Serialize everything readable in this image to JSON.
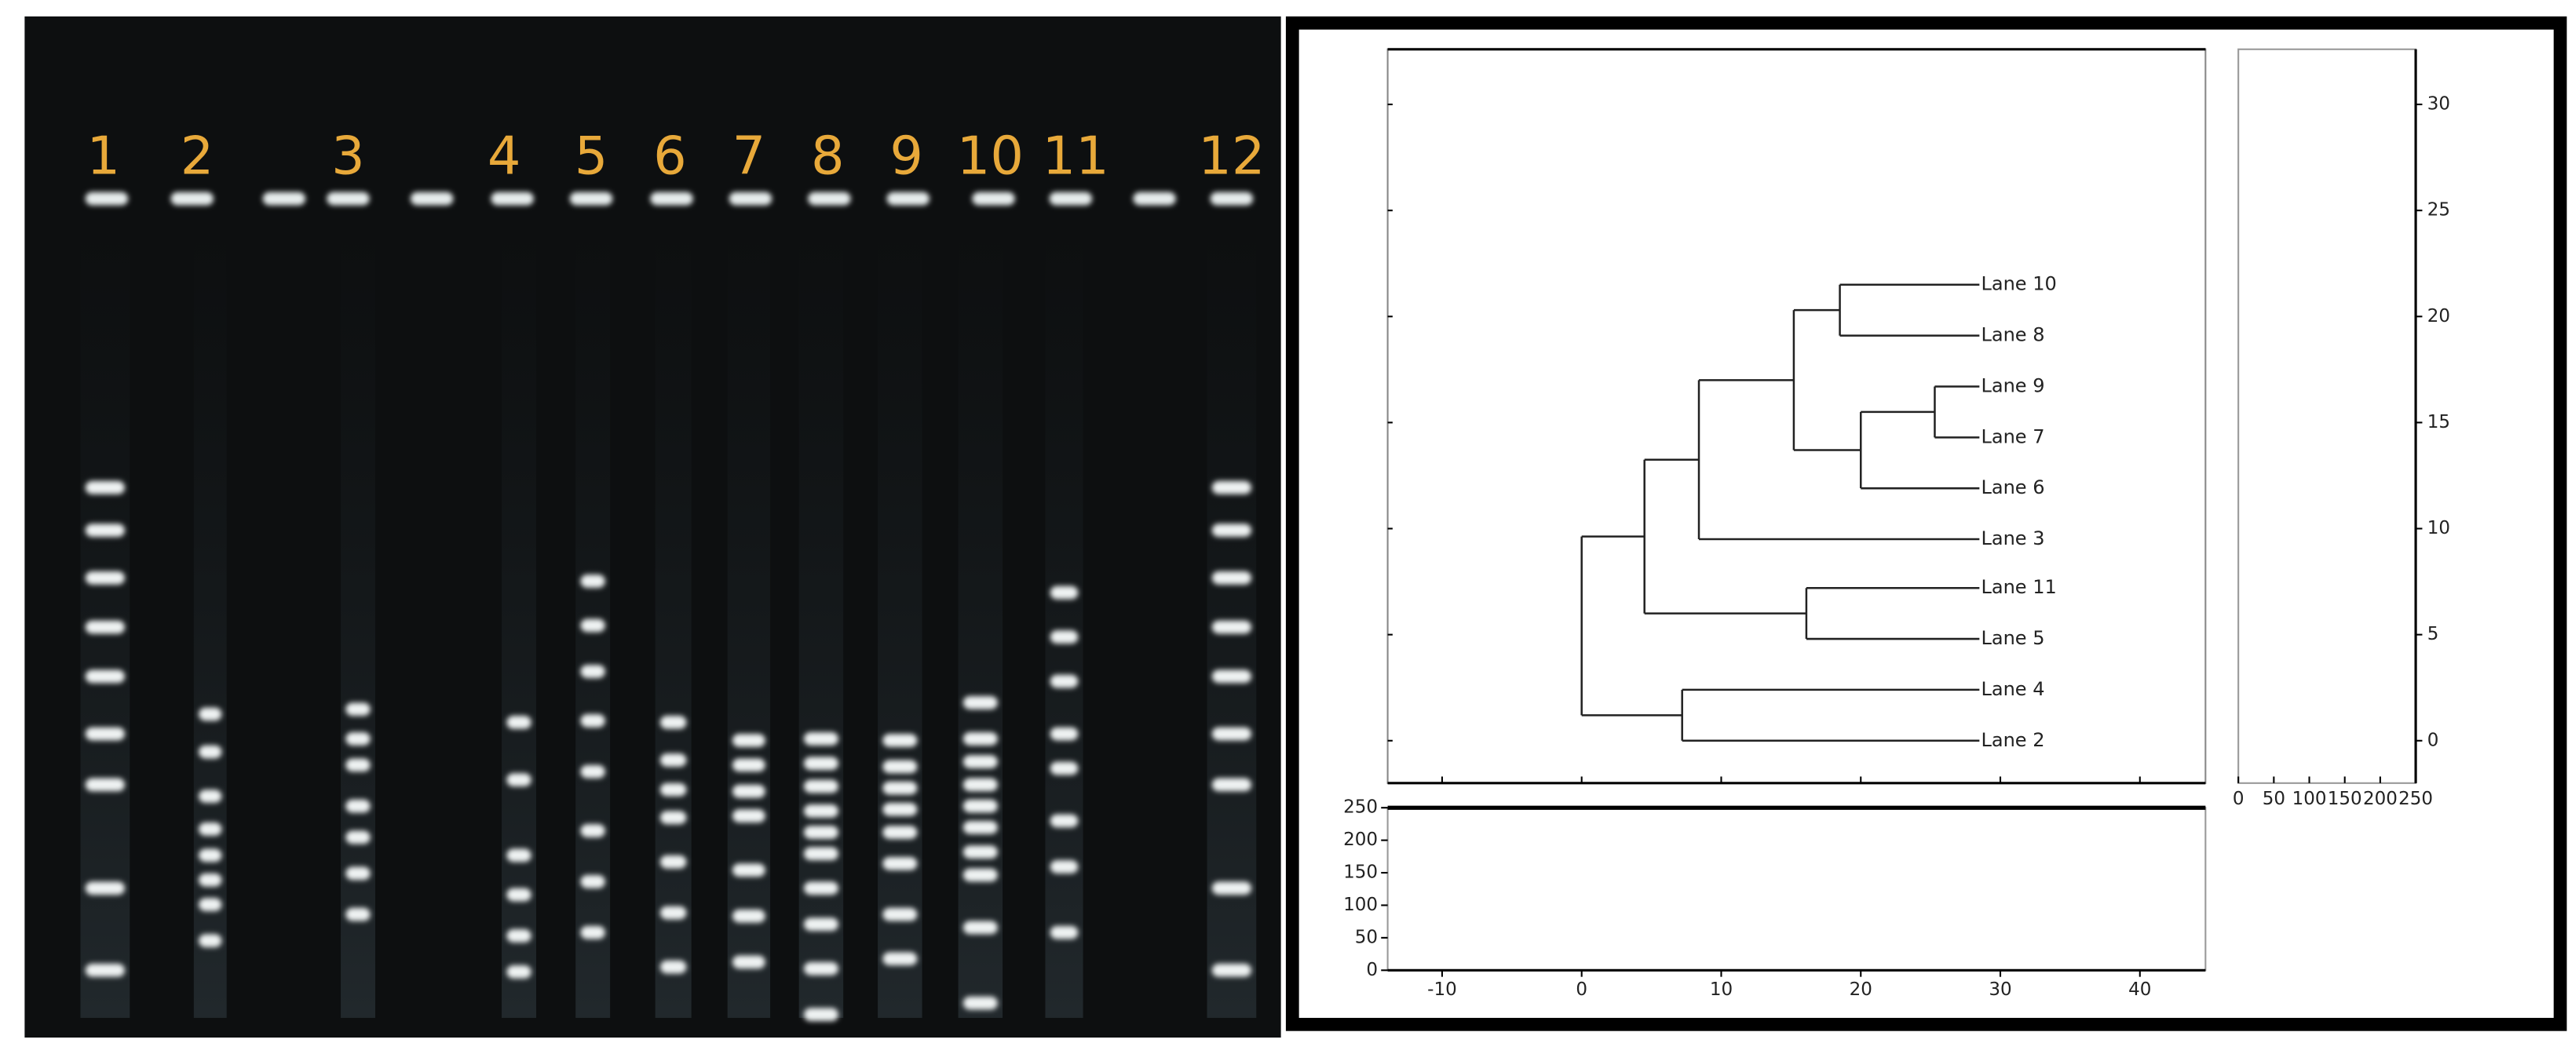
{
  "gel": {
    "lane_labels": [
      "1",
      "2",
      "3",
      "4",
      "5",
      "6",
      "7",
      "8",
      "9",
      "10",
      "11",
      "12"
    ]
  },
  "chart_data": {
    "type": "dendrogram",
    "xlim": [
      -13.9,
      44.7
    ],
    "xticks": [
      -10,
      0,
      10,
      20,
      30,
      40
    ],
    "ylim": [
      -2.0,
      32.6
    ],
    "yticks": [
      0,
      5,
      10,
      15,
      20,
      25,
      30
    ],
    "leaf_x": 28.5,
    "leaves": [
      {
        "label": "Lane 2",
        "y": 0
      },
      {
        "label": "Lane 4",
        "y": 2.4
      },
      {
        "label": "Lane 5",
        "y": 4.8
      },
      {
        "label": "Lane 11",
        "y": 7.2
      },
      {
        "label": "Lane 3",
        "y": 9.5
      },
      {
        "label": "Lane 6",
        "y": 11.9
      },
      {
        "label": "Lane 7",
        "y": 14.3
      },
      {
        "label": "Lane 9",
        "y": 16.7
      },
      {
        "label": "Lane 8",
        "y": 19.1
      },
      {
        "label": "Lane 10",
        "y": 21.5
      }
    ],
    "merges": [
      {
        "x": 25.3,
        "children": [
          6,
          7
        ]
      },
      {
        "x": 20.0,
        "children": [
          5,
          10
        ]
      },
      {
        "x": 18.5,
        "children": [
          8,
          9
        ]
      },
      {
        "x": 15.2,
        "children": [
          11,
          12
        ]
      },
      {
        "x": 8.4,
        "children": [
          4,
          13
        ]
      },
      {
        "x": 16.1,
        "children": [
          2,
          3
        ]
      },
      {
        "x": 4.5,
        "children": [
          15,
          14
        ]
      },
      {
        "x": 7.2,
        "children": [
          0,
          1
        ]
      },
      {
        "x": 0,
        "children": [
          17,
          16
        ]
      }
    ],
    "bottom_panel": {
      "ylim": [
        0,
        250
      ],
      "yticks": [
        0,
        50,
        100,
        150,
        200,
        250
      ]
    },
    "right_panel": {
      "xlim": [
        0,
        250
      ],
      "xticks": [
        0,
        50,
        100,
        150,
        200,
        250
      ]
    }
  }
}
